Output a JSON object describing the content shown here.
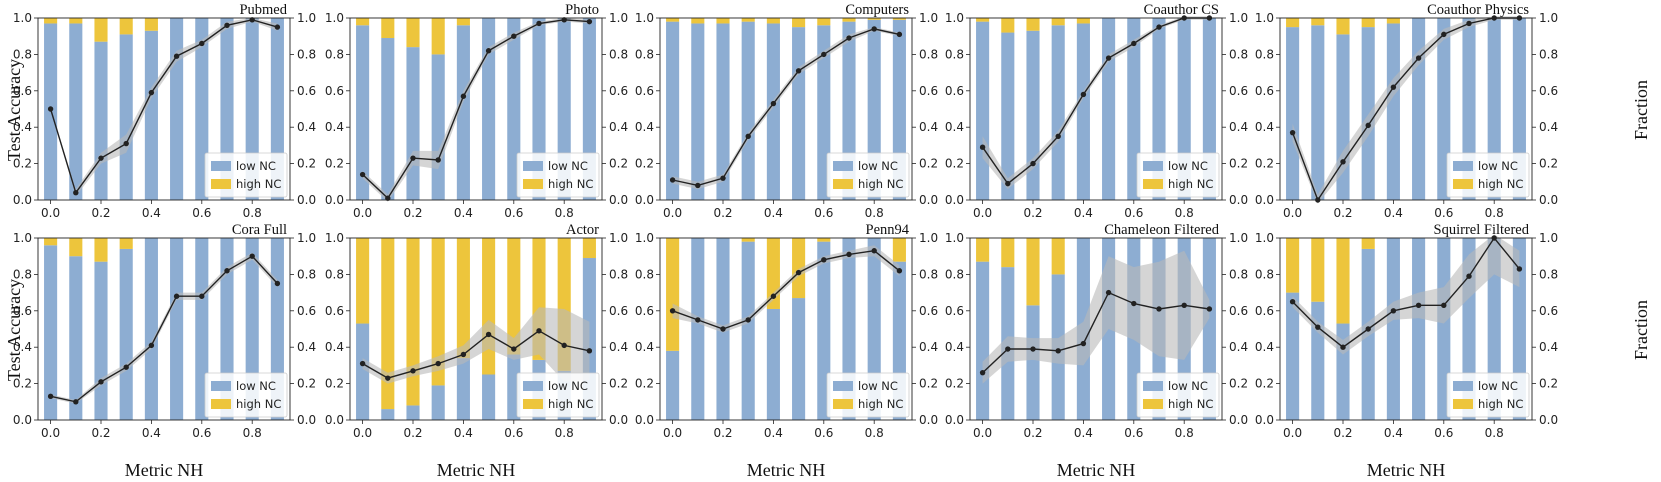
{
  "figure": {
    "y_left_label": "Test Accuracy",
    "y_right_label": "Fraction",
    "x_label": "Metric NH",
    "legend_labels": [
      "low NC",
      "high NC"
    ],
    "colors": {
      "low": "#8dadd2",
      "high": "#edc53c",
      "line": "#222222",
      "band": "#b9b9b9"
    }
  },
  "chart_data": [
    {
      "type": "bar+line",
      "title": "Pubmed",
      "x": [
        0,
        0.1,
        0.2,
        0.3,
        0.4,
        0.5,
        0.6,
        0.7,
        0.8,
        0.9
      ],
      "series": [
        {
          "name": "low NC",
          "values": [
            0.97,
            0.97,
            0.87,
            0.91,
            0.93,
            1,
            1,
            1,
            1,
            1
          ]
        },
        {
          "name": "high NC",
          "values": [
            0.03,
            0.03,
            0.13,
            0.09,
            0.07,
            0,
            0,
            0,
            0,
            0
          ]
        },
        {
          "name": "Test Accuracy",
          "values": [
            0.5,
            0.04,
            0.23,
            0.31,
            0.59,
            0.79,
            0.86,
            0.96,
            0.99,
            0.95
          ]
        }
      ],
      "band": [
        0,
        0.02,
        0.03,
        0.05,
        0.03,
        0.03,
        0.02,
        0.02,
        0.01,
        0.02
      ],
      "ylim": [
        0,
        1
      ],
      "xticks": [
        "0.0",
        "0.2",
        "0.4",
        "0.6",
        "0.8"
      ],
      "yticks": [
        "0.0",
        "0.2",
        "0.4",
        "0.6",
        "0.8",
        "1.0"
      ]
    },
    {
      "type": "bar+line",
      "title": "Photo",
      "x": [
        0,
        0.1,
        0.2,
        0.3,
        0.4,
        0.5,
        0.6,
        0.7,
        0.8,
        0.9
      ],
      "series": [
        {
          "name": "low NC",
          "values": [
            0.96,
            0.89,
            0.84,
            0.8,
            0.96,
            1,
            1,
            1,
            1,
            1
          ]
        },
        {
          "name": "high NC",
          "values": [
            0.04,
            0.11,
            0.16,
            0.2,
            0.04,
            0,
            0,
            0,
            0,
            0
          ]
        },
        {
          "name": "Test Accuracy",
          "values": [
            0.14,
            0.01,
            0.23,
            0.22,
            0.57,
            0.82,
            0.9,
            0.97,
            0.99,
            0.98
          ]
        }
      ],
      "band": [
        0.02,
        0.02,
        0.04,
        0.05,
        0.03,
        0.02,
        0.02,
        0.01,
        0.01,
        0.01
      ],
      "ylim": [
        0,
        1
      ],
      "xticks": [
        "0.0",
        "0.2",
        "0.4",
        "0.6",
        "0.8"
      ],
      "yticks": [
        "0.0",
        "0.2",
        "0.4",
        "0.6",
        "0.8",
        "1.0"
      ]
    },
    {
      "type": "bar+line",
      "title": "Computers",
      "x": [
        0,
        0.1,
        0.2,
        0.3,
        0.4,
        0.5,
        0.6,
        0.7,
        0.8,
        0.9
      ],
      "series": [
        {
          "name": "low NC",
          "values": [
            0.98,
            0.97,
            0.97,
            0.98,
            0.97,
            0.95,
            0.96,
            0.98,
            0.99,
            0.99
          ]
        },
        {
          "name": "high NC",
          "values": [
            0.02,
            0.03,
            0.03,
            0.02,
            0.03,
            0.05,
            0.04,
            0.02,
            0.01,
            0.01
          ]
        },
        {
          "name": "Test Accuracy",
          "values": [
            0.11,
            0.08,
            0.12,
            0.35,
            0.53,
            0.71,
            0.8,
            0.89,
            0.94,
            0.91
          ]
        }
      ],
      "band": [
        0.02,
        0.02,
        0.02,
        0.02,
        0.02,
        0.02,
        0.02,
        0.02,
        0.01,
        0.01
      ],
      "ylim": [
        0,
        1
      ],
      "xticks": [
        "0.0",
        "0.2",
        "0.4",
        "0.6",
        "0.8"
      ],
      "yticks": [
        "0.0",
        "0.2",
        "0.4",
        "0.6",
        "0.8",
        "1.0"
      ]
    },
    {
      "type": "bar+line",
      "title": "Coauthor CS",
      "x": [
        0,
        0.1,
        0.2,
        0.3,
        0.4,
        0.5,
        0.6,
        0.7,
        0.8,
        0.9
      ],
      "series": [
        {
          "name": "low NC",
          "values": [
            0.98,
            0.92,
            0.93,
            0.96,
            0.97,
            1,
            1,
            1,
            1,
            1
          ]
        },
        {
          "name": "high NC",
          "values": [
            0.02,
            0.08,
            0.07,
            0.04,
            0.03,
            0,
            0,
            0,
            0,
            0
          ]
        },
        {
          "name": "Test Accuracy",
          "values": [
            0.29,
            0.09,
            0.2,
            0.35,
            0.58,
            0.78,
            0.86,
            0.95,
            1,
            1
          ]
        }
      ],
      "band": [
        0.06,
        0.03,
        0.03,
        0.03,
        0.02,
        0.02,
        0.02,
        0.01,
        0.01,
        0.01
      ],
      "ylim": [
        0,
        1
      ],
      "xticks": [
        "0.0",
        "0.2",
        "0.4",
        "0.6",
        "0.8"
      ],
      "yticks": [
        "0.0",
        "0.2",
        "0.4",
        "0.6",
        "0.8",
        "1.0"
      ]
    },
    {
      "type": "bar+line",
      "title": "Coauthor Physics",
      "x": [
        0,
        0.1,
        0.2,
        0.3,
        0.4,
        0.5,
        0.6,
        0.7,
        0.8,
        0.9
      ],
      "series": [
        {
          "name": "low NC",
          "values": [
            0.95,
            0.96,
            0.91,
            0.95,
            0.97,
            1,
            1,
            1,
            1,
            1
          ]
        },
        {
          "name": "high NC",
          "values": [
            0.05,
            0.04,
            0.09,
            0.05,
            0.03,
            0,
            0,
            0,
            0,
            0
          ]
        },
        {
          "name": "Test Accuracy",
          "values": [
            0.37,
            0.0,
            0.21,
            0.41,
            0.62,
            0.78,
            0.91,
            0.97,
            1.0,
            1.0
          ]
        }
      ],
      "band": [
        0.05,
        0.03,
        0.06,
        0.06,
        0.05,
        0.04,
        0.03,
        0.02,
        0.01,
        0.01
      ],
      "ylim": [
        0,
        1
      ],
      "xticks": [
        "0.0",
        "0.2",
        "0.4",
        "0.6",
        "0.8"
      ],
      "yticks": [
        "0.0",
        "0.2",
        "0.4",
        "0.6",
        "0.8",
        "1.0"
      ]
    },
    {
      "type": "bar+line",
      "title": "Cora Full",
      "x": [
        0,
        0.1,
        0.2,
        0.3,
        0.4,
        0.5,
        0.6,
        0.7,
        0.8,
        0.9
      ],
      "series": [
        {
          "name": "low NC",
          "values": [
            0.96,
            0.9,
            0.87,
            0.94,
            1,
            1,
            1,
            1,
            1,
            1
          ]
        },
        {
          "name": "high NC",
          "values": [
            0.04,
            0.1,
            0.13,
            0.06,
            0,
            0,
            0,
            0,
            0,
            0
          ]
        },
        {
          "name": "Test Accuracy",
          "values": [
            0.13,
            0.1,
            0.21,
            0.29,
            0.41,
            0.68,
            0.68,
            0.82,
            0.9,
            0.75
          ]
        }
      ],
      "band": [
        0.01,
        0.01,
        0.02,
        0.02,
        0.02,
        0.02,
        0.02,
        0.02,
        0.02,
        0.02
      ],
      "ylim": [
        0,
        1
      ],
      "xticks": [
        "0.0",
        "0.2",
        "0.4",
        "0.6",
        "0.8"
      ],
      "yticks": [
        "0.0",
        "0.2",
        "0.4",
        "0.6",
        "0.8",
        "1.0"
      ]
    },
    {
      "type": "bar+line",
      "title": "Actor",
      "x": [
        0,
        0.1,
        0.2,
        0.3,
        0.4,
        0.5,
        0.6,
        0.7,
        0.8,
        0.9
      ],
      "series": [
        {
          "name": "low NC",
          "values": [
            0.53,
            0.06,
            0.08,
            0.19,
            0.34,
            0.25,
            0.36,
            0.33,
            0.27,
            0.89
          ]
        },
        {
          "name": "high NC",
          "values": [
            0.47,
            0.94,
            0.92,
            0.81,
            0.66,
            0.75,
            0.64,
            0.67,
            0.73,
            0.11
          ]
        },
        {
          "name": "Test Accuracy",
          "values": [
            0.31,
            0.23,
            0.27,
            0.31,
            0.36,
            0.47,
            0.39,
            0.49,
            0.41,
            0.38
          ]
        }
      ],
      "band": [
        0.03,
        0.03,
        0.03,
        0.04,
        0.05,
        0.08,
        0.06,
        0.13,
        0.2,
        0.16
      ],
      "ylim": [
        0,
        1
      ],
      "xticks": [
        "0.0",
        "0.2",
        "0.4",
        "0.6",
        "0.8"
      ],
      "yticks": [
        "0.0",
        "0.2",
        "0.4",
        "0.6",
        "0.8",
        "1.0"
      ]
    },
    {
      "type": "bar+line",
      "title": "Penn94",
      "x": [
        0,
        0.1,
        0.2,
        0.3,
        0.4,
        0.5,
        0.6,
        0.7,
        0.8,
        0.9
      ],
      "series": [
        {
          "name": "low NC",
          "values": [
            0.38,
            1,
            1,
            0.98,
            0.61,
            0.67,
            0.98,
            1,
            1,
            0.87
          ]
        },
        {
          "name": "high NC",
          "values": [
            0.62,
            0,
            0,
            0.02,
            0.39,
            0.33,
            0.02,
            0,
            0,
            0.13
          ]
        },
        {
          "name": "Test Accuracy",
          "values": [
            0.6,
            0.55,
            0.5,
            0.55,
            0.68,
            0.81,
            0.88,
            0.91,
            0.93,
            0.82
          ]
        }
      ],
      "band": [
        0.04,
        0.02,
        0.02,
        0.02,
        0.02,
        0.02,
        0.02,
        0.02,
        0.03,
        0.03
      ],
      "ylim": [
        0,
        1
      ],
      "xticks": [
        "0.0",
        "0.2",
        "0.4",
        "0.6",
        "0.8"
      ],
      "yticks": [
        "0.0",
        "0.2",
        "0.4",
        "0.6",
        "0.8",
        "1.0"
      ]
    },
    {
      "type": "bar+line",
      "title": "Chameleon Filtered",
      "x": [
        0,
        0.1,
        0.2,
        0.3,
        0.4,
        0.5,
        0.6,
        0.7,
        0.8,
        0.9
      ],
      "series": [
        {
          "name": "low NC",
          "values": [
            0.87,
            0.84,
            0.63,
            0.8,
            1,
            1,
            1,
            1,
            1,
            1
          ]
        },
        {
          "name": "high NC",
          "values": [
            0.13,
            0.16,
            0.37,
            0.2,
            0,
            0,
            0,
            0,
            0,
            0
          ]
        },
        {
          "name": "Test Accuracy",
          "values": [
            0.26,
            0.39,
            0.39,
            0.38,
            0.42,
            0.7,
            0.64,
            0.61,
            0.63,
            0.61
          ]
        }
      ],
      "band": [
        0.06,
        0.07,
        0.06,
        0.07,
        0.12,
        0.2,
        0.2,
        0.26,
        0.3,
        0.05
      ],
      "ylim": [
        0,
        1
      ],
      "xticks": [
        "0.0",
        "0.2",
        "0.4",
        "0.6",
        "0.8"
      ],
      "yticks": [
        "0.0",
        "0.2",
        "0.4",
        "0.6",
        "0.8",
        "1.0"
      ]
    },
    {
      "type": "bar+line",
      "title": "Squirrel Filtered",
      "x": [
        0,
        0.1,
        0.2,
        0.3,
        0.4,
        0.5,
        0.6,
        0.7,
        0.8,
        0.9
      ],
      "series": [
        {
          "name": "low NC",
          "values": [
            0.7,
            0.65,
            0.53,
            0.94,
            1,
            1,
            1,
            1,
            1,
            1
          ]
        },
        {
          "name": "high NC",
          "values": [
            0.3,
            0.35,
            0.47,
            0.06,
            0,
            0,
            0,
            0,
            0,
            0
          ]
        },
        {
          "name": "Test Accuracy",
          "values": [
            0.65,
            0.51,
            0.4,
            0.5,
            0.6,
            0.63,
            0.63,
            0.79,
            1.0,
            0.83
          ]
        }
      ],
      "band": [
        0.03,
        0.03,
        0.04,
        0.04,
        0.05,
        0.07,
        0.1,
        0.12,
        0.2,
        0.1
      ],
      "ylim": [
        0,
        1
      ],
      "xticks": [
        "0.0",
        "0.2",
        "0.4",
        "0.6",
        "0.8"
      ],
      "yticks": [
        "0.0",
        "0.2",
        "0.4",
        "0.6",
        "0.8",
        "1.0"
      ]
    }
  ]
}
